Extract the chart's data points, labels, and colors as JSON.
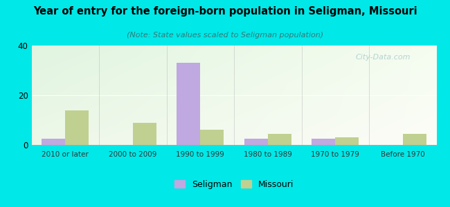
{
  "title": "Year of entry for the foreign-born population in Seligman, Missouri",
  "subtitle": "(Note: State values scaled to Seligman population)",
  "categories": [
    "2010 or later",
    "2000 to 2009",
    "1990 to 1999",
    "1980 to 1989",
    "1970 to 1979",
    "Before 1970"
  ],
  "seligman_values": [
    2.5,
    0,
    33,
    2.5,
    2.5,
    0
  ],
  "missouri_values": [
    14,
    9,
    6,
    4.5,
    3,
    4.5
  ],
  "seligman_color": "#c0a8e0",
  "missouri_color": "#c0d090",
  "background_outer": "#00e8e8",
  "ylim": [
    0,
    40
  ],
  "yticks": [
    0,
    20,
    40
  ],
  "bar_width": 0.35,
  "watermark": "City-Data.com",
  "legend_seligman": "Seligman",
  "legend_missouri": "Missouri"
}
